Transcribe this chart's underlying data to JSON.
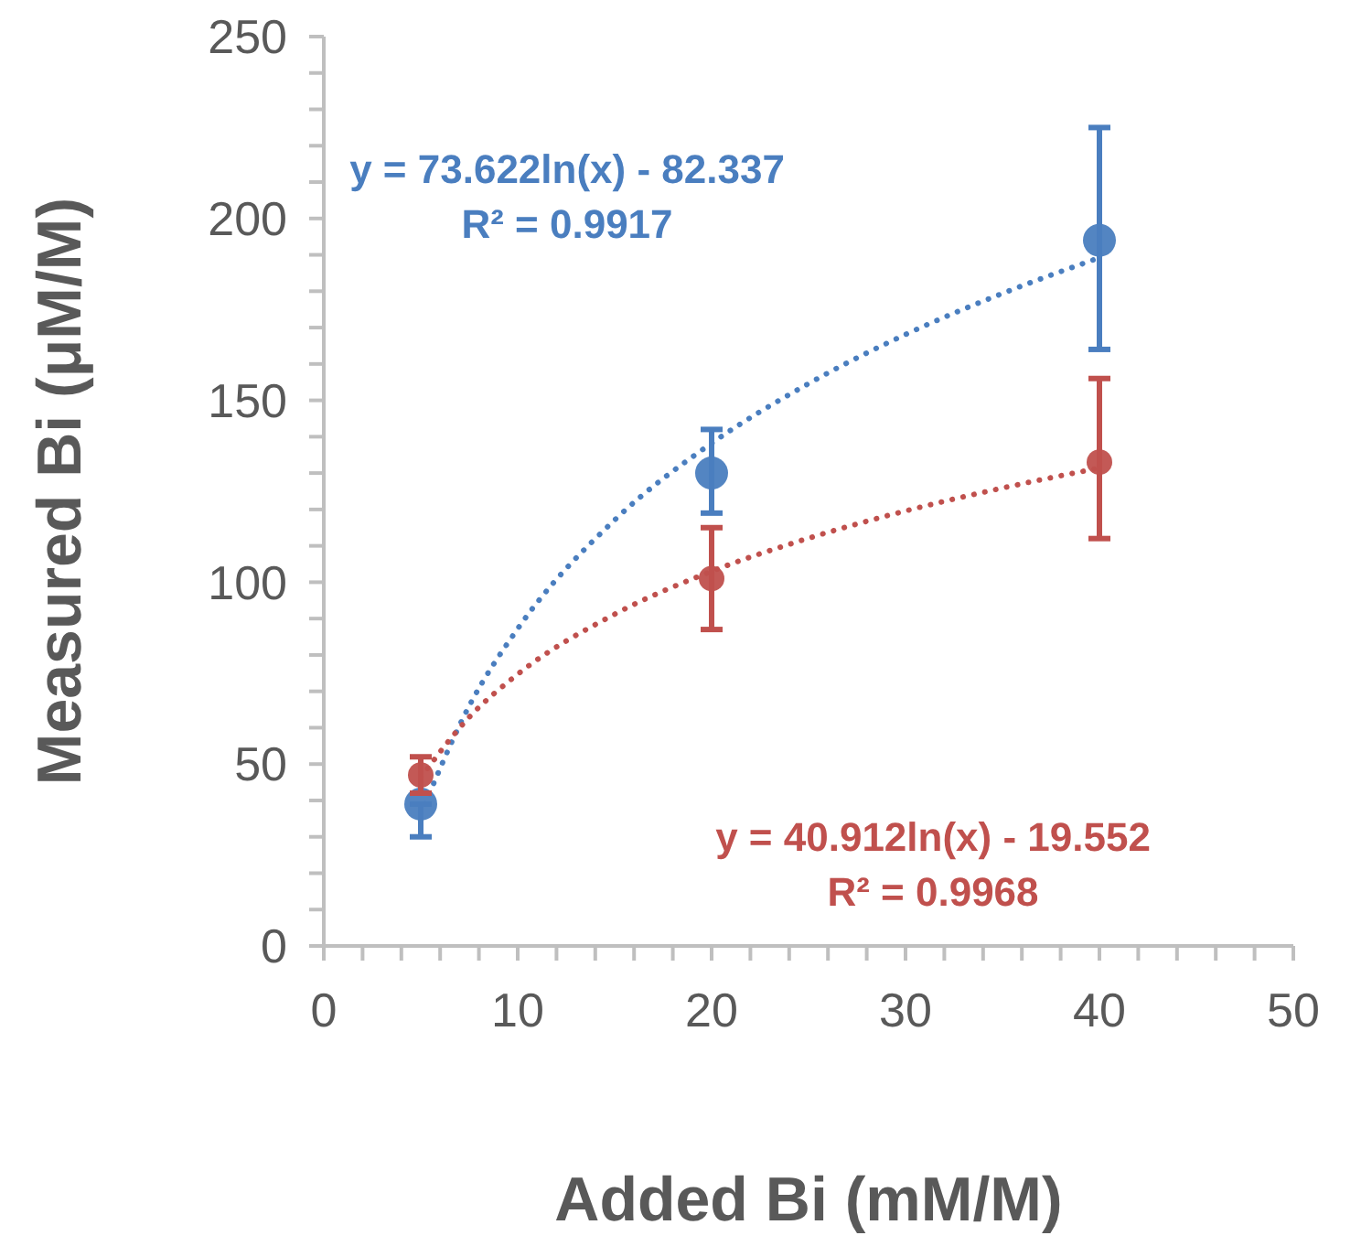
{
  "chart_data": {
    "type": "scatter",
    "xlabel": "Added Bi (mM/M)",
    "ylabel": "Measured Bi (μM/M)",
    "xlim": [
      0,
      50
    ],
    "ylim": [
      0,
      250
    ],
    "xticks": [
      0,
      {
        "value": 2,
        "label": null
      },
      {
        "value": 4,
        "label": null
      },
      {
        "value": 6,
        "label": null
      },
      {
        "value": 8,
        "label": null
      },
      10,
      {
        "value": 12,
        "label": null
      },
      {
        "value": 14,
        "label": null
      },
      {
        "value": 16,
        "label": null
      },
      {
        "value": 18,
        "label": null
      },
      20,
      {
        "value": 22,
        "label": null
      },
      {
        "value": 24,
        "label": null
      },
      {
        "value": 26,
        "label": null
      },
      {
        "value": 28,
        "label": null
      },
      30,
      {
        "value": 32,
        "label": null
      },
      {
        "value": 34,
        "label": null
      },
      {
        "value": 36,
        "label": null
      },
      {
        "value": 38,
        "label": null
      },
      40,
      {
        "value": 42,
        "label": null
      },
      {
        "value": 44,
        "label": null
      },
      {
        "value": 46,
        "label": null
      },
      {
        "value": 48,
        "label": null
      },
      50
    ],
    "yticks": [
      0,
      {
        "value": 10,
        "label": null
      },
      {
        "value": 20,
        "label": null
      },
      {
        "value": 30,
        "label": null
      },
      {
        "value": 40,
        "label": null
      },
      50,
      {
        "value": 60,
        "label": null
      },
      {
        "value": 70,
        "label": null
      },
      {
        "value": 80,
        "label": null
      },
      {
        "value": 90,
        "label": null
      },
      100,
      {
        "value": 110,
        "label": null
      },
      {
        "value": 120,
        "label": null
      },
      {
        "value": 130,
        "label": null
      },
      {
        "value": 140,
        "label": null
      },
      150,
      {
        "value": 160,
        "label": null
      },
      {
        "value": 170,
        "label": null
      },
      {
        "value": 180,
        "label": null
      },
      {
        "value": 190,
        "label": null
      },
      200,
      {
        "value": 210,
        "label": null
      },
      {
        "value": 220,
        "label": null
      },
      {
        "value": 230,
        "label": null
      },
      {
        "value": 240,
        "label": null
      },
      250
    ],
    "grid": false,
    "annotations": [
      "y = 73.622ln(x) - 82.337\nR² = 0.9917",
      "y = 40.912ln(x) - 19.552\nR² = 0.9968"
    ],
    "series": [
      {
        "color": "#4a7ebf",
        "x": [
          5,
          20,
          40
        ],
        "values": [
          39,
          130,
          194
        ],
        "errors": [
          [
            30,
            39
          ],
          [
            119,
            142
          ],
          [
            164,
            225
          ]
        ],
        "marker": "circle"
      },
      {
        "color": "#c0504d",
        "x": [
          5,
          20,
          40
        ],
        "values": [
          47,
          101,
          133
        ],
        "errors": [
          [
            42,
            52
          ],
          [
            87,
            115
          ],
          [
            112,
            156
          ]
        ],
        "marker": "circle"
      },
      {
        "type": "line",
        "color": "#4a7ebf",
        "x": [
          5,
          7.5,
          10,
          15,
          20,
          25,
          30,
          35,
          40
        ],
        "values": [
          36.2,
          66,
          87.2,
          117.1,
          138.2,
          154.6,
          168.1,
          179.4,
          189.2
        ],
        "line_style": "dotted"
      },
      {
        "type": "line",
        "color": "#c0504d",
        "x": [
          5,
          7.5,
          10,
          15,
          20,
          25,
          30,
          35,
          40
        ],
        "values": [
          46.3,
          62.9,
          74.7,
          91.2,
          103,
          112.1,
          119.6,
          125.9,
          131.4
        ],
        "line_style": "dotted"
      }
    ]
  }
}
